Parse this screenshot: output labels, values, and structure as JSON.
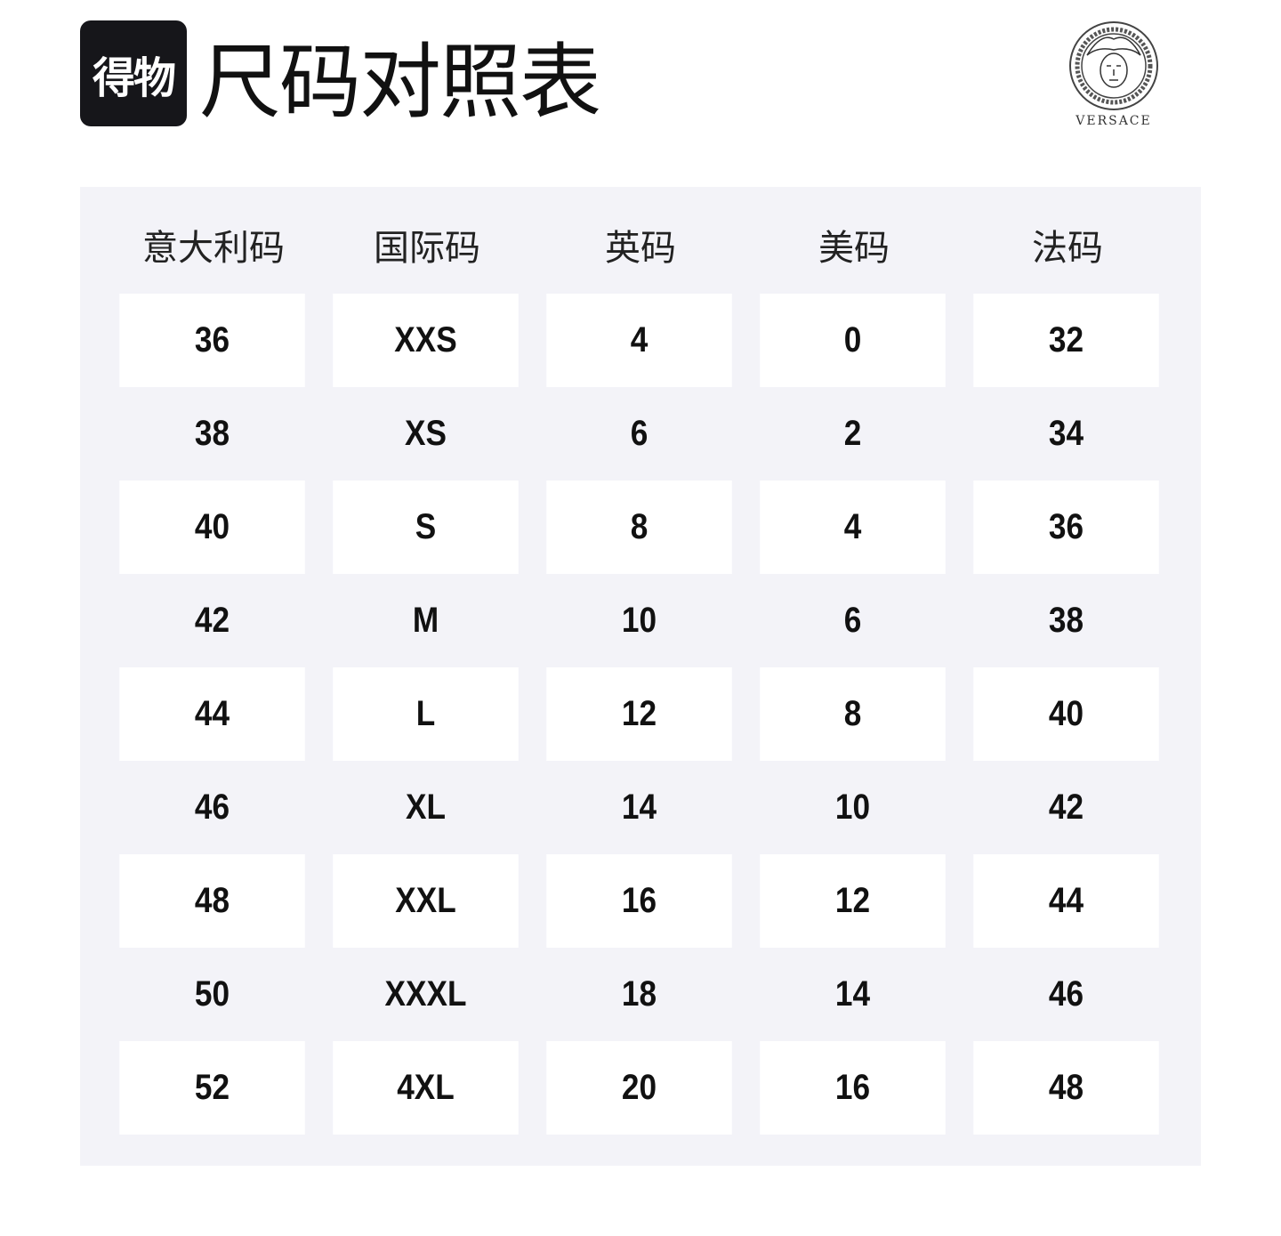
{
  "header": {
    "brand_logo_text": "得物",
    "title": "尺码对照表",
    "versace_logo_text": "VERSACE"
  },
  "table": {
    "columns": [
      "意大利码",
      "国际码",
      "英码",
      "美码",
      "法码"
    ],
    "rows": [
      [
        "36",
        "XXS",
        "4",
        "0",
        "32"
      ],
      [
        "38",
        "XS",
        "6",
        "2",
        "34"
      ],
      [
        "40",
        "S",
        "8",
        "4",
        "36"
      ],
      [
        "42",
        "M",
        "10",
        "6",
        "38"
      ],
      [
        "44",
        "L",
        "12",
        "8",
        "40"
      ],
      [
        "46",
        "XL",
        "14",
        "10",
        "42"
      ],
      [
        "48",
        "XXL",
        "16",
        "12",
        "44"
      ],
      [
        "50",
        "XXXL",
        "18",
        "14",
        "46"
      ],
      [
        "52",
        "4XL",
        "20",
        "16",
        "48"
      ]
    ]
  }
}
